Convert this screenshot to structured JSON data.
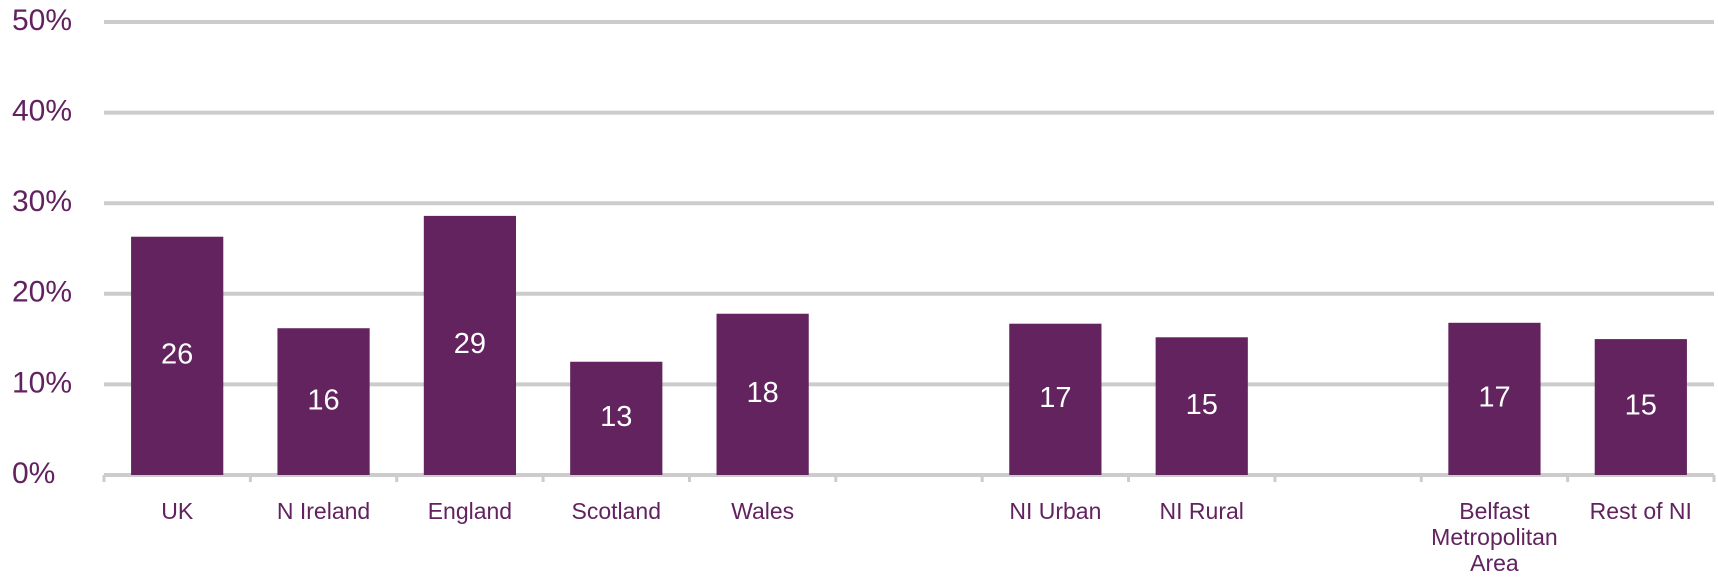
{
  "chart_data": {
    "type": "bar",
    "categories": [
      "UK",
      "N Ireland",
      "England",
      "Scotland",
      "Wales",
      null,
      "NI Urban",
      "NI Rural",
      null,
      "Belfast Metropolitan Area",
      "Rest of NI"
    ],
    "values": [
      26.3,
      16.2,
      28.6,
      12.5,
      17.8,
      null,
      16.7,
      15.2,
      null,
      16.8,
      15.0
    ],
    "value_labels": [
      "26",
      "16",
      "29",
      "13",
      "18",
      null,
      "17",
      "15",
      null,
      "17",
      "15"
    ],
    "color": "#62235f",
    "ylim": [
      0,
      50
    ],
    "yticks": [
      {
        "value": 0,
        "label": "0%"
      },
      {
        "value": 10,
        "label": "10%"
      },
      {
        "value": 20,
        "label": "20%"
      },
      {
        "value": 30,
        "label": "30%"
      },
      {
        "value": 40,
        "label": "40%"
      },
      {
        "value": 50,
        "label": "50%"
      }
    ],
    "grid": true
  }
}
